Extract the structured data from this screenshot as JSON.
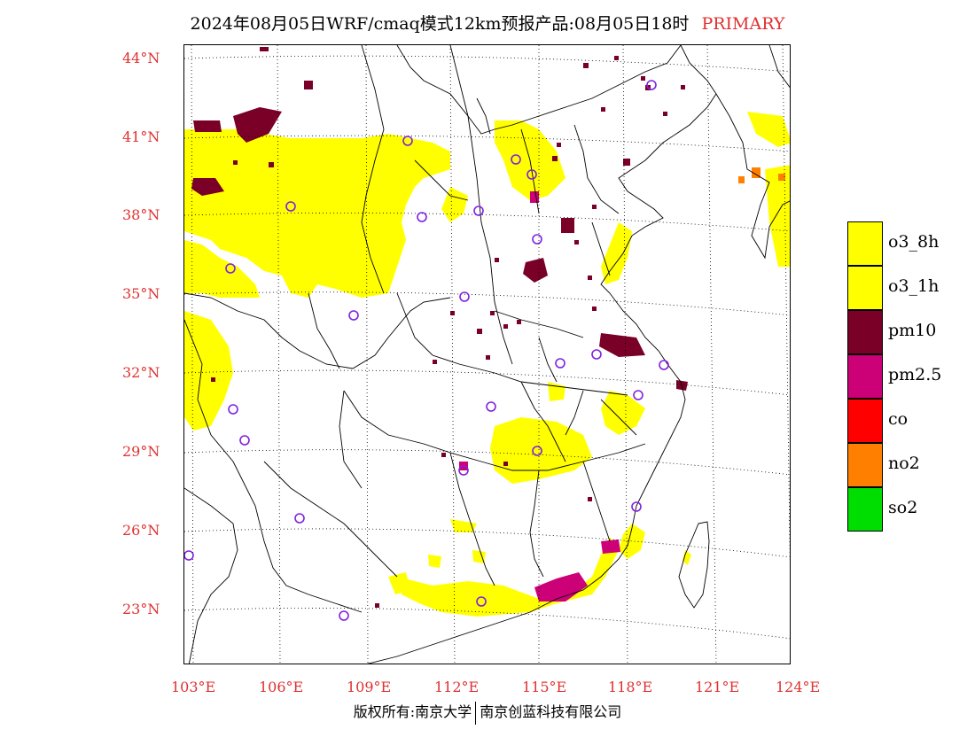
{
  "title": {
    "main": "2024年08月05日WRF/cmaq模式12km预报产品:08月05日18时",
    "tag": "PRIMARY"
  },
  "axes": {
    "lat_labels": [
      "44°N",
      "41°N",
      "38°N",
      "35°N",
      "32°N",
      "29°N",
      "26°N",
      "23°N"
    ],
    "lon_labels": [
      "103°E",
      "106°E",
      "109°E",
      "112°E",
      "115°E",
      "118°E",
      "121°E",
      "124°E"
    ],
    "label_color": "#e03030"
  },
  "legend": [
    {
      "label": "o3_8h",
      "color": "#ffff00"
    },
    {
      "label": "o3_1h",
      "color": "#ffff00"
    },
    {
      "label": "pm10",
      "color": "#7a0028"
    },
    {
      "label": "pm2.5",
      "color": "#cc0077"
    },
    {
      "label": "co",
      "color": "#ff0000"
    },
    {
      "label": "no2",
      "color": "#ff8000"
    },
    {
      "label": "so2",
      "color": "#00dd00"
    }
  ],
  "footer": {
    "left": "版权所有:南京大学",
    "right": "南京创蓝科技有限公司"
  }
}
